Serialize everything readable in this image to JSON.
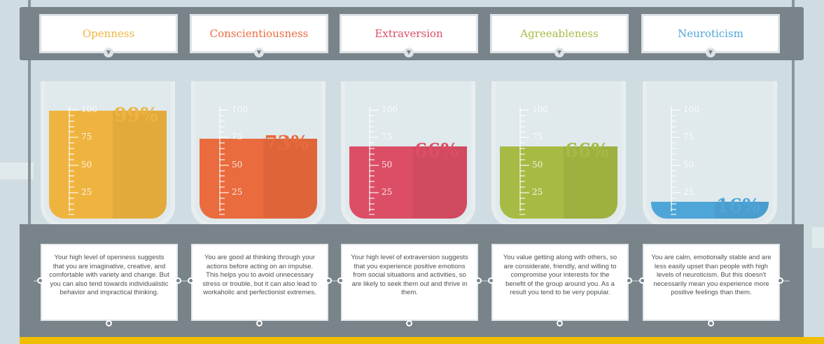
{
  "chart_data": {
    "type": "bar",
    "categories": [
      "Openness",
      "Conscientiousness",
      "Extraversion",
      "Agreeableness",
      "Neuroticism"
    ],
    "values": [
      99,
      73,
      66,
      66,
      16
    ],
    "value_labels": [
      "99%",
      "73%",
      "66%",
      "66%",
      "16%"
    ],
    "ylim": [
      0,
      100
    ],
    "scale_ticks": [
      100,
      75,
      50,
      25
    ],
    "colors": [
      "#efb440",
      "#ea6b3e",
      "#dc4e66",
      "#a7ba44",
      "#4ea6d8"
    ],
    "descriptions": [
      "Your high level of openness suggests that you are imaginative, creative, and comfortable with variety and change. But you can also tend towards individualistic behavior and impractical thinking.",
      "You are good at thinking through your actions before acting on an impulse. This helps you to avoid unnecessary stress or trouble, but it can also lead to workaholic and perfectionist extremes.",
      "Your high level of extraversion suggests that you experience positive emotions from social situations and activities, so are likely to seek them out and thrive in them.",
      "You value getting along with others, so are considerate, friendly, and willing to compromise your interests for the benefit of the group around you. As a result you tend to be very popular.",
      "You are calm, emotionally stable and are less easily upset than people with high levels of neuroticism. But this doesn't necessarily mean you experience more positive feelings than them."
    ]
  }
}
